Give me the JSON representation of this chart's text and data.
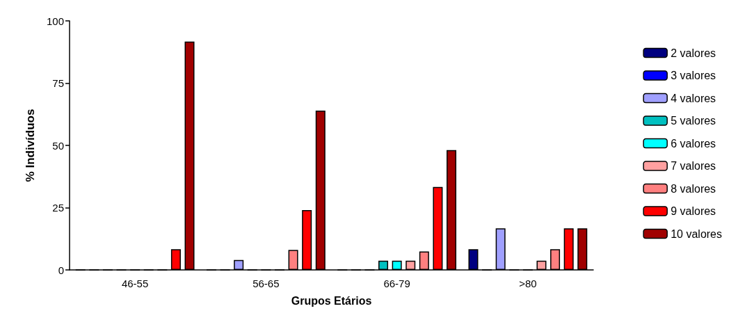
{
  "chart_data": {
    "type": "bar",
    "xlabel": "Grupos Etários",
    "ylabel": "% Indivíduos",
    "categories": [
      "46-55",
      "56-65",
      "66-79",
      ">80"
    ],
    "series": [
      {
        "name": "2 valores",
        "color": "#000080",
        "values": [
          0,
          0,
          0,
          8.3
        ]
      },
      {
        "name": "3 valores",
        "color": "#0000ff",
        "values": [
          0,
          0,
          0,
          0
        ]
      },
      {
        "name": "4 valores",
        "color": "#a0a0ff",
        "values": [
          0,
          4,
          0,
          16.7
        ]
      },
      {
        "name": "5 valores",
        "color": "#00c0c0",
        "values": [
          0,
          0,
          3.7,
          0
        ]
      },
      {
        "name": "6 valores",
        "color": "#00ffff",
        "values": [
          0,
          0,
          3.7,
          0
        ]
      },
      {
        "name": "7 valores",
        "color": "#ffa0a0",
        "values": [
          0,
          0,
          3.7,
          3.7
        ]
      },
      {
        "name": "8 valores",
        "color": "#ff8080",
        "values": [
          0,
          8,
          7.4,
          8.3
        ]
      },
      {
        "name": "9 valores",
        "color": "#ff0000",
        "values": [
          8.3,
          24,
          33.3,
          16.7
        ]
      },
      {
        "name": "10 valores",
        "color": "#a00000",
        "values": [
          91.7,
          64,
          48.1,
          16.7
        ]
      }
    ],
    "ylim": [
      0,
      100
    ],
    "yticks": [
      0,
      25,
      50,
      75,
      100
    ],
    "grid": false,
    "legend": "right"
  }
}
